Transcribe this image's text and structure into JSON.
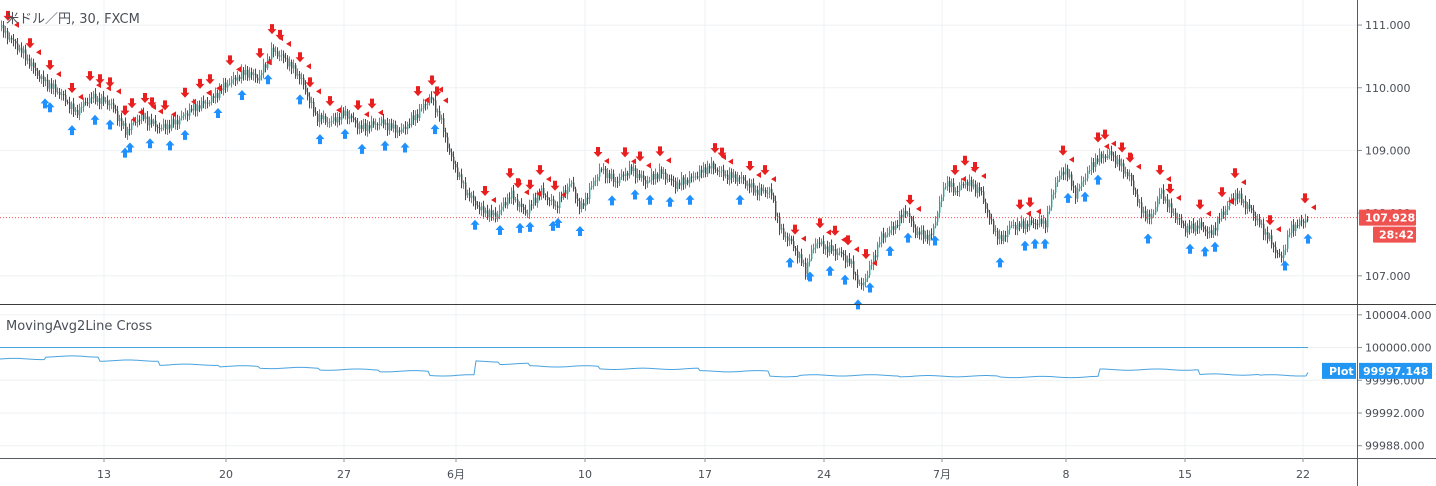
{
  "main_title": "米ドル／円, 30, FXCM",
  "indicator_title": "MovingAvg2Line Cross",
  "colors": {
    "up_candle": "#26a69a",
    "down_candle": "#4a4a4a",
    "sell_signal": "#e91e1e",
    "buy_signal": "#1e90ff",
    "price_tag": "#ef5350",
    "plot_line": "#4aa3df",
    "plot_tag": "#2196f3",
    "separator": "#3c3c3c"
  },
  "price_tag": {
    "value": "107.928",
    "countdown": "28:42"
  },
  "plot_tag": {
    "label": "Plot",
    "value": "99997.148"
  },
  "chart_data": [
    {
      "type": "candlestick",
      "title": "米ドル／円, 30, FXCM",
      "ylim": [
        106.55,
        111.4
      ],
      "y_ticks": [
        "111.000",
        "110.000",
        "109.000",
        "108.000",
        "107.000"
      ],
      "x_labels": [
        "13",
        "20",
        "27",
        "6月",
        "10",
        "17",
        "24",
        "7月",
        "8",
        "15",
        "22"
      ],
      "current_price": 107.928,
      "close_path": [
        [
          0,
          110.95
        ],
        [
          20,
          110.6
        ],
        [
          40,
          110.15
        ],
        [
          60,
          109.9
        ],
        [
          75,
          109.6
        ],
        [
          90,
          109.85
        ],
        [
          110,
          109.75
        ],
        [
          125,
          109.3
        ],
        [
          140,
          109.55
        ],
        [
          160,
          109.35
        ],
        [
          175,
          109.45
        ],
        [
          190,
          109.65
        ],
        [
          210,
          109.8
        ],
        [
          225,
          110.05
        ],
        [
          245,
          110.25
        ],
        [
          258,
          110.15
        ],
        [
          272,
          110.6
        ],
        [
          285,
          110.45
        ],
        [
          300,
          110.15
        ],
        [
          315,
          109.55
        ],
        [
          330,
          109.45
        ],
        [
          345,
          109.6
        ],
        [
          360,
          109.35
        ],
        [
          380,
          109.45
        ],
        [
          400,
          109.3
        ],
        [
          415,
          109.55
        ],
        [
          430,
          109.85
        ],
        [
          440,
          109.5
        ],
        [
          450,
          108.9
        ],
        [
          465,
          108.35
        ],
        [
          480,
          108.05
        ],
        [
          495,
          107.95
        ],
        [
          510,
          108.3
        ],
        [
          525,
          108.0
        ],
        [
          540,
          108.35
        ],
        [
          555,
          108.1
        ],
        [
          570,
          108.5
        ],
        [
          580,
          108.05
        ],
        [
          590,
          108.4
        ],
        [
          600,
          108.7
        ],
        [
          615,
          108.5
        ],
        [
          630,
          108.7
        ],
        [
          645,
          108.5
        ],
        [
          660,
          108.65
        ],
        [
          675,
          108.45
        ],
        [
          690,
          108.55
        ],
        [
          710,
          108.75
        ],
        [
          725,
          108.6
        ],
        [
          740,
          108.55
        ],
        [
          755,
          108.35
        ],
        [
          770,
          108.35
        ],
        [
          780,
          107.7
        ],
        [
          790,
          107.55
        ],
        [
          805,
          107.1
        ],
        [
          815,
          107.55
        ],
        [
          825,
          107.45
        ],
        [
          840,
          107.35
        ],
        [
          850,
          107.2
        ],
        [
          860,
          106.8
        ],
        [
          870,
          107.15
        ],
        [
          880,
          107.6
        ],
        [
          895,
          107.8
        ],
        [
          905,
          108.05
        ],
        [
          915,
          107.7
        ],
        [
          930,
          107.6
        ],
        [
          945,
          108.5
        ],
        [
          955,
          108.35
        ],
        [
          965,
          108.5
        ],
        [
          980,
          108.35
        ],
        [
          990,
          107.85
        ],
        [
          1000,
          107.55
        ],
        [
          1010,
          107.8
        ],
        [
          1020,
          107.8
        ],
        [
          1035,
          107.85
        ],
        [
          1045,
          107.85
        ],
        [
          1055,
          108.5
        ],
        [
          1065,
          108.7
        ],
        [
          1075,
          108.3
        ],
        [
          1085,
          108.6
        ],
        [
          1095,
          108.85
        ],
        [
          1110,
          108.95
        ],
        [
          1120,
          108.75
        ],
        [
          1130,
          108.55
        ],
        [
          1140,
          108.05
        ],
        [
          1150,
          107.9
        ],
        [
          1160,
          108.35
        ],
        [
          1170,
          108.05
        ],
        [
          1185,
          107.75
        ],
        [
          1200,
          107.8
        ],
        [
          1210,
          107.65
        ],
        [
          1220,
          107.95
        ],
        [
          1235,
          108.3
        ],
        [
          1250,
          108.05
        ],
        [
          1260,
          107.8
        ],
        [
          1270,
          107.55
        ],
        [
          1280,
          107.25
        ],
        [
          1290,
          107.75
        ],
        [
          1300,
          107.85
        ],
        [
          1308,
          107.928
        ]
      ],
      "sell_signal_x": [
        8,
        30,
        50,
        72,
        90,
        100,
        110,
        125,
        132,
        145,
        152,
        165,
        185,
        200,
        210,
        230,
        260,
        272,
        280,
        300,
        310,
        330,
        358,
        372,
        418,
        432,
        437,
        485,
        510,
        518,
        530,
        540,
        555,
        598,
        625,
        640,
        660,
        715,
        722,
        750,
        765,
        795,
        820,
        835,
        848,
        866,
        910,
        955,
        965,
        975,
        1020,
        1030,
        1063,
        1098,
        1105,
        1122,
        1130,
        1160,
        1170,
        1200,
        1222,
        1235,
        1270,
        1305
      ],
      "buy_signal_x": [
        45,
        50,
        72,
        95,
        110,
        125,
        130,
        150,
        170,
        185,
        218,
        242,
        268,
        300,
        320,
        345,
        362,
        385,
        405,
        435,
        475,
        500,
        520,
        530,
        553,
        558,
        580,
        612,
        635,
        650,
        670,
        690,
        740,
        790,
        810,
        830,
        845,
        858,
        870,
        890,
        908,
        935,
        1000,
        1025,
        1035,
        1045,
        1068,
        1085,
        1098,
        1148,
        1190,
        1205,
        1215,
        1285,
        1308
      ]
    },
    {
      "type": "line",
      "title": "MovingAvg2Line Cross",
      "series_name": "Plot",
      "ylim": [
        99986.5,
        100005.2
      ],
      "y_ticks": [
        "100004.000",
        "100000.000",
        "99996.000",
        "99992.000",
        "99988.000"
      ],
      "reference_level": 100000.0,
      "last_value": 99997.148,
      "x": [
        0,
        45,
        100,
        160,
        220,
        260,
        320,
        380,
        430,
        475,
        500,
        530,
        600,
        700,
        770,
        800,
        900,
        1000,
        1100,
        1200,
        1260,
        1308
      ],
      "values": [
        99998.6,
        99998.9,
        99998.4,
        99997.9,
        99997.7,
        99997.5,
        99997.3,
        99997.1,
        99996.6,
        99998.3,
        99998.0,
        99997.7,
        99997.4,
        99997.1,
        99996.5,
        99996.6,
        99996.5,
        99996.4,
        99997.3,
        99996.7,
        99996.6,
        99997.0
      ]
    }
  ]
}
